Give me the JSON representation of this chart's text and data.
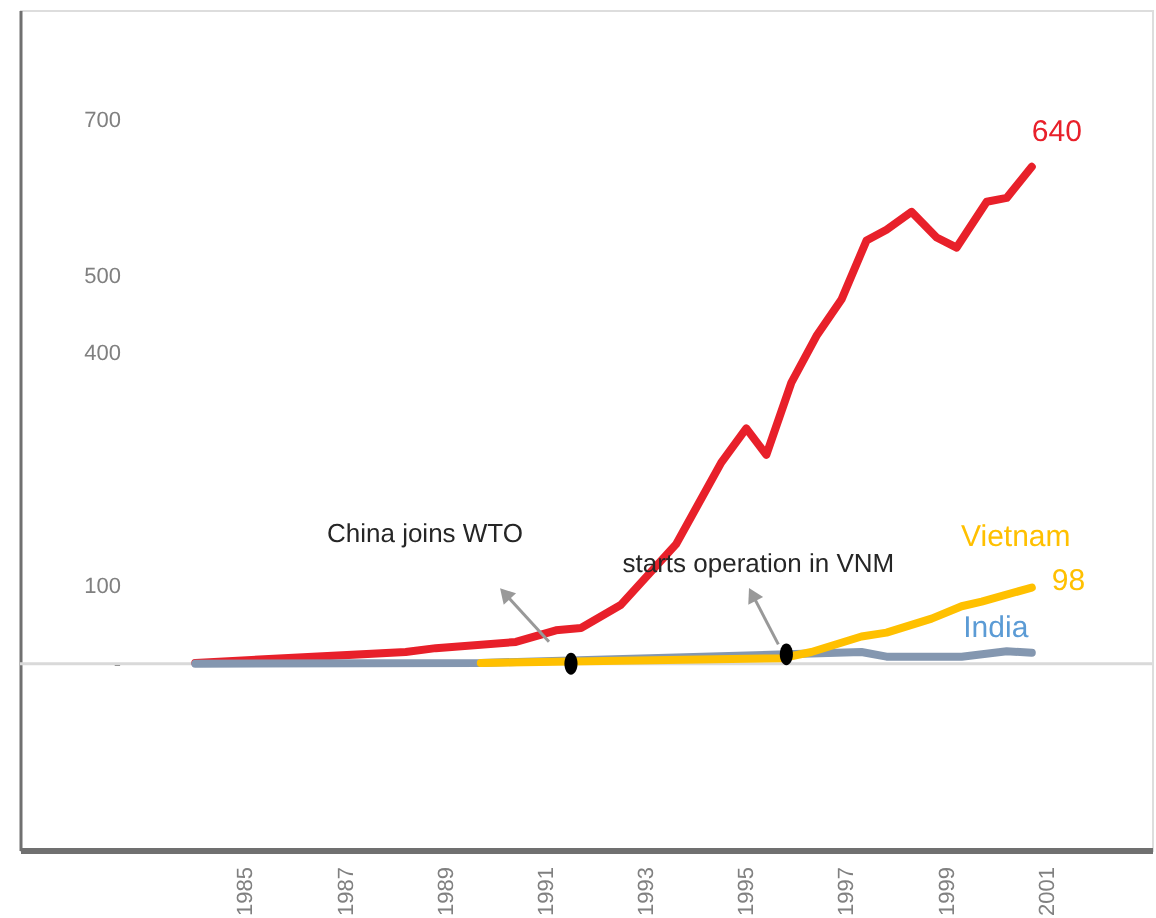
{
  "chart_data": {
    "type": "line",
    "x": [
      1984,
      1988.2,
      1988.8,
      1990.4,
      1991.2,
      1991.7,
      1992.5,
      1993.6,
      1994.5,
      1995,
      1995.4,
      1995.9,
      1996.4,
      1996.9,
      1997.4,
      1997.8,
      1998.3,
      1998.8,
      1999.2,
      1999.8,
      2000.2,
      2000.7
    ],
    "series": [
      {
        "color": "#e8202a",
        "values": [
          1,
          15,
          20,
          28,
          43,
          46,
          76,
          154,
          259,
          303,
          269,
          362,
          422,
          469,
          545,
          559,
          582,
          549,
          536,
          595,
          600,
          640
        ],
        "value_labels": [
          null,
          null,
          null,
          null,
          null,
          null,
          null,
          null,
          null,
          null,
          null,
          null,
          null,
          null,
          null,
          null,
          null,
          null,
          null,
          null,
          null,
          "640"
        ]
      },
      {
        "name": "India",
        "color": "#8497b0",
        "x": [
          1984,
          1989.7,
          1995.8,
          1997.3,
          1997.8,
          1999.3,
          2000.2,
          2000.7
        ],
        "values": [
          0,
          1,
          12,
          15,
          9,
          9,
          16,
          14
        ]
      },
      {
        "name": "Vietnam",
        "color": "#ffc000",
        "x": [
          1989.7,
          1995.7,
          1996.3,
          1997.3,
          1997.8,
          1998.7,
          1999.3,
          1999.7,
          2000.7
        ],
        "values": [
          1,
          7,
          15,
          35,
          40,
          58,
          74,
          80,
          98
        ],
        "value_labels": [
          null,
          null,
          null,
          null,
          null,
          null,
          null,
          null,
          "98"
        ]
      },
      {
        "type": "scatter",
        "color": "#000000",
        "x": [
          1991.5,
          1995.8
        ],
        "values": [
          0,
          12
        ],
        "marker": "circle"
      }
    ],
    "annotations": [
      "China joins WTO",
      "starts operation in VNM"
    ],
    "xlim": [
      1980.5,
      2003.1
    ],
    "xticks": [
      1985,
      1987,
      1989,
      1991,
      1993,
      1995,
      1997,
      1999,
      2001
    ],
    "ylim": [
      -240,
      842
    ],
    "yticks": [
      {
        "value": 0,
        "label": "-"
      },
      100,
      400,
      500,
      700
    ],
    "ref_lines": [
      {
        "axis": "y",
        "value": 0,
        "color": "#d9d9d9"
      }
    ],
    "grid": false,
    "marker": "none",
    "line_style": "solid"
  }
}
